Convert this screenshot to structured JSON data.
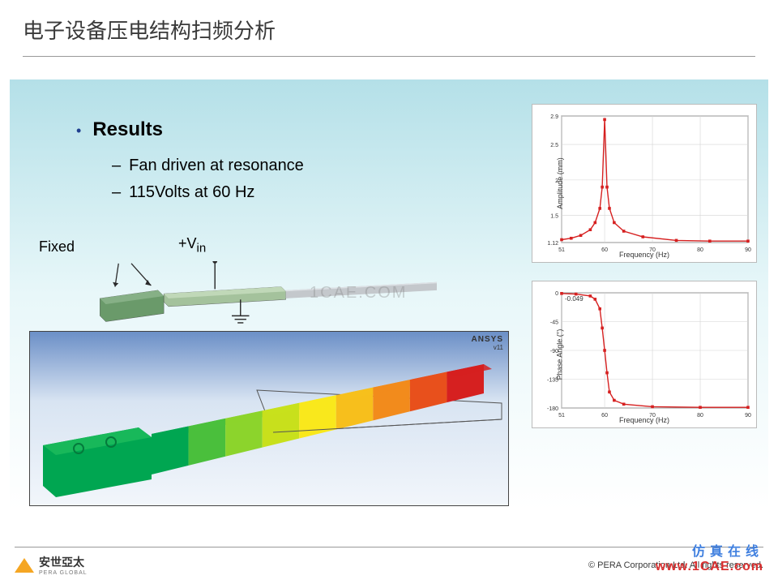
{
  "title": "电子设备压电结构扫频分析",
  "bullet": {
    "head": "Results",
    "items": [
      "Fan driven at resonance",
      "115Volts at 60 Hz"
    ]
  },
  "labels": {
    "fixed": "Fixed",
    "vin": "+V",
    "vin_sub": "in"
  },
  "ansys": {
    "name": "ANSYS",
    "ver": "v11"
  },
  "watermark_center": "1CAE.COM",
  "watermark_right": {
    "line1": "仿真在线",
    "line2": "www.1CAE.com"
  },
  "footer": {
    "logo_text": "安世亞太",
    "logo_sub": "PERA GLOBAL",
    "copyright": "©  PERA Corporation Ltd. All rights reserved."
  },
  "schematic": {
    "base_color": "#6a9a6a",
    "mid_color": "#a4c29c",
    "ext_color": "#b0b4b8",
    "arrow_color": "#2a2a2a"
  },
  "fea": {
    "colors": [
      "#00a651",
      "#4abf3c",
      "#8cd42c",
      "#c8e01c",
      "#f9e81c",
      "#f7bf1c",
      "#f28b1c",
      "#e8501c",
      "#d62020"
    ],
    "wire_color": "#555555",
    "bg_top": "#6b8fc7",
    "bg_bot": "#f2f6fb"
  },
  "chart1": {
    "type": "line",
    "xlabel": "Frequency (Hz)",
    "ylabel": "Amplitude (mm)",
    "xlim": [
      51,
      90
    ],
    "ylim": [
      1.12,
      2.9
    ],
    "xticks": [
      51,
      60,
      70,
      80,
      90
    ],
    "yticks": [
      1.12,
      1.5,
      2.0,
      2.5,
      2.9
    ],
    "line_color": "#d62020",
    "marker": "square",
    "title_fontsize": 9,
    "grid_color": "#d4d4d4",
    "bg": "#ffffff",
    "points": [
      [
        51,
        1.16
      ],
      [
        53,
        1.18
      ],
      [
        55,
        1.22
      ],
      [
        57,
        1.3
      ],
      [
        58,
        1.4
      ],
      [
        59,
        1.6
      ],
      [
        59.5,
        1.9
      ],
      [
        60,
        2.85
      ],
      [
        60.5,
        1.9
      ],
      [
        61,
        1.6
      ],
      [
        62,
        1.4
      ],
      [
        64,
        1.28
      ],
      [
        68,
        1.2
      ],
      [
        75,
        1.15
      ],
      [
        82,
        1.14
      ],
      [
        90,
        1.14
      ]
    ]
  },
  "chart2": {
    "type": "line",
    "xlabel": "Frequency (Hz)",
    "ylabel": "Phase Angle (°)",
    "xlim": [
      51,
      90
    ],
    "ylim": [
      -180,
      0
    ],
    "xticks": [
      51,
      60,
      70,
      80,
      90
    ],
    "yticks": [
      -180,
      -135,
      -90,
      -45,
      0
    ],
    "line_color": "#d62020",
    "marker": "square",
    "grid_color": "#d4d4d4",
    "bg": "#ffffff",
    "top_label": "-0.049",
    "points": [
      [
        51,
        -1
      ],
      [
        54,
        -2
      ],
      [
        57,
        -5
      ],
      [
        58,
        -10
      ],
      [
        59,
        -25
      ],
      [
        59.5,
        -55
      ],
      [
        60,
        -90
      ],
      [
        60.5,
        -125
      ],
      [
        61,
        -155
      ],
      [
        62,
        -168
      ],
      [
        64,
        -174
      ],
      [
        70,
        -178
      ],
      [
        80,
        -179
      ],
      [
        90,
        -179
      ]
    ]
  }
}
